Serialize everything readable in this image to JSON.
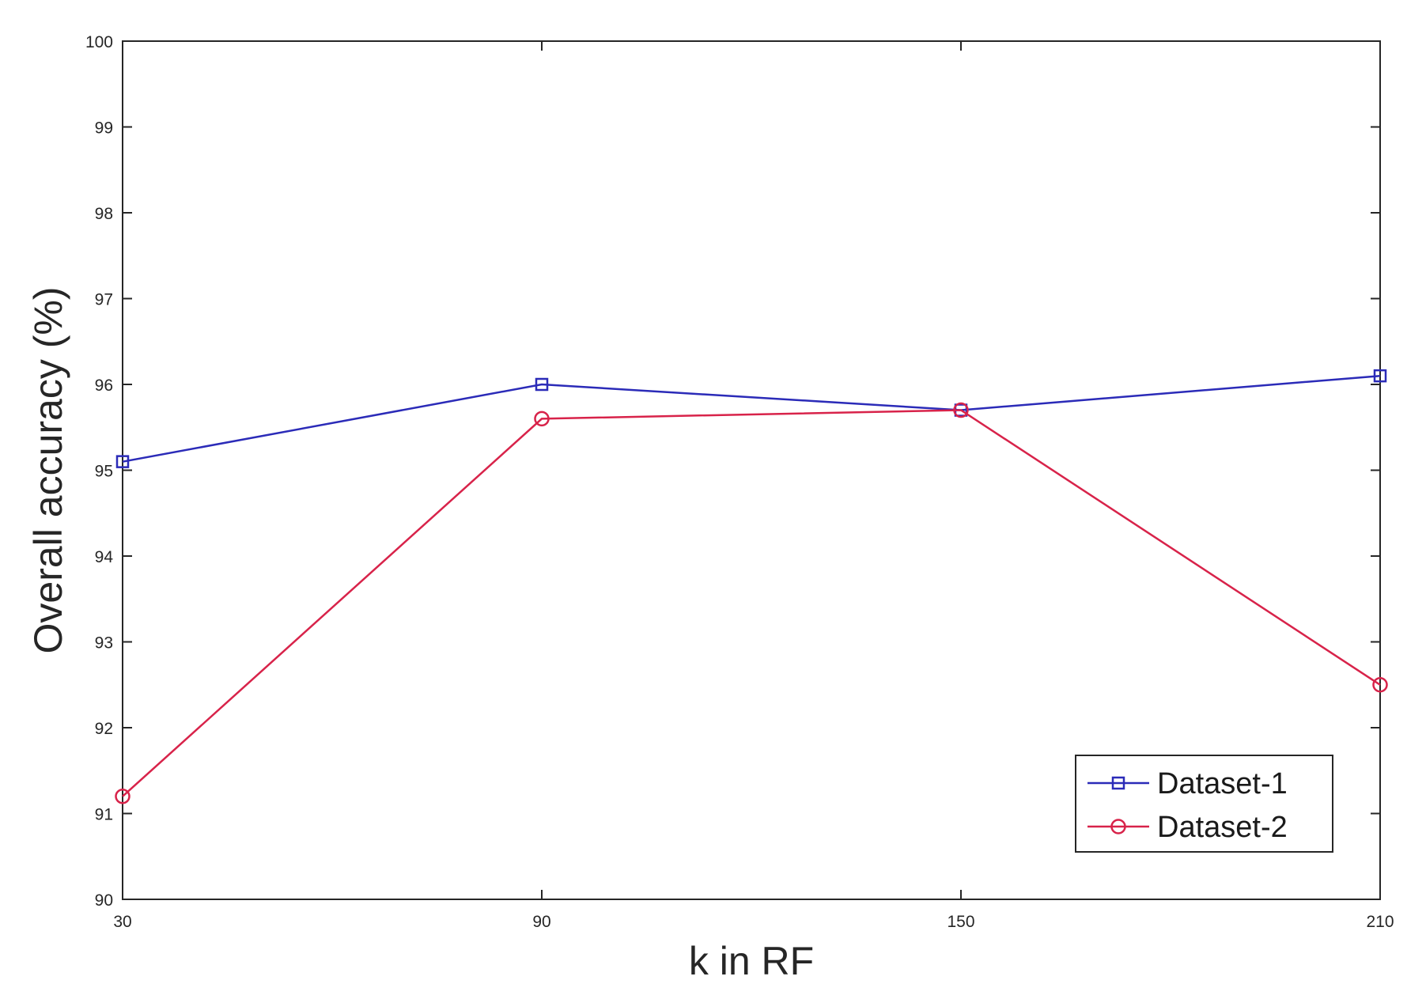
{
  "chart_data": {
    "type": "line",
    "title": "",
    "xlabel": "k in RF",
    "ylabel": "Overall accuracy (%)",
    "x": [
      30,
      90,
      150,
      210
    ],
    "xticks": [
      "30",
      "90",
      "150",
      "210"
    ],
    "yticks": [
      "90",
      "91",
      "92",
      "93",
      "94",
      "95",
      "96",
      "97",
      "98",
      "99",
      "100"
    ],
    "xlim": [
      30,
      210
    ],
    "ylim": [
      90,
      100
    ],
    "grid": false,
    "legend_position": "bottom-right",
    "series": [
      {
        "name": "Dataset-1",
        "values": [
          95.1,
          96.0,
          95.7,
          96.1
        ],
        "color": "#2b2bb8",
        "marker": "square"
      },
      {
        "name": "Dataset-2",
        "values": [
          91.2,
          95.6,
          95.7,
          92.5
        ],
        "color": "#d8234a",
        "marker": "circle"
      }
    ]
  }
}
